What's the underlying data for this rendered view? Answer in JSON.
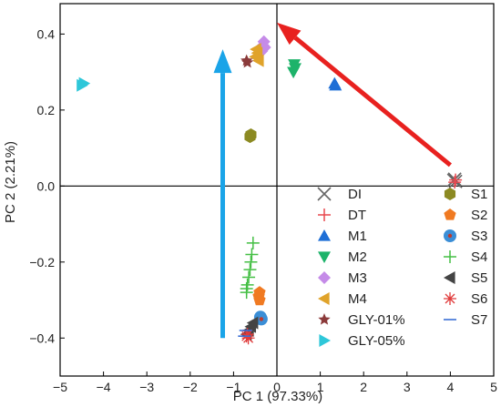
{
  "chart_data": {
    "type": "scatter",
    "title": "",
    "xlabel": "PC 1 (97.33%)",
    "ylabel": "PC 2 (2.21%)",
    "xlim": [
      -5,
      5
    ],
    "ylim": [
      -0.5,
      0.48
    ],
    "xticks": [
      -5,
      -4,
      -3,
      -2,
      -1,
      0,
      1,
      2,
      3,
      4,
      5
    ],
    "xtick_labels": [
      "−5",
      "−4",
      "−3",
      "−2",
      "−1",
      "0",
      "1",
      "2",
      "3",
      "4",
      "5"
    ],
    "yticks": [
      -0.4,
      -0.2,
      0.0,
      0.2,
      0.4
    ],
    "ytick_labels": [
      "−0.4",
      "−0.2",
      "0.0",
      "0.2",
      "0.4"
    ],
    "zero_lines": true,
    "grid": false,
    "legend_position": "bottom-right",
    "series": [
      {
        "name": "DI",
        "marker": "x",
        "color": "#666666",
        "points": [
          [
            4.1,
            0.018
          ],
          [
            4.12,
            0.012
          ],
          [
            4.08,
            0.015
          ]
        ]
      },
      {
        "name": "DT",
        "marker": "plus",
        "color": "#e8484f",
        "points": [
          [
            4.1,
            0.01
          ],
          [
            4.12,
            0.016
          ]
        ]
      },
      {
        "name": "M1",
        "marker": "triangle-up",
        "color": "#1f6fd6",
        "points": [
          [
            1.35,
            0.265
          ],
          [
            1.33,
            0.27
          ]
        ]
      },
      {
        "name": "M2",
        "marker": "triangle-down",
        "color": "#1db36a",
        "points": [
          [
            0.4,
            0.32
          ],
          [
            0.42,
            0.31
          ],
          [
            0.38,
            0.3
          ]
        ]
      },
      {
        "name": "M3",
        "marker": "diamond",
        "color": "#c58be8",
        "points": [
          [
            -0.3,
            0.38
          ],
          [
            -0.32,
            0.37
          ],
          [
            -0.28,
            0.365
          ],
          [
            -0.35,
            0.355
          ]
        ]
      },
      {
        "name": "M4",
        "marker": "triangle-left",
        "color": "#e0a32a",
        "points": [
          [
            -0.45,
            0.35
          ],
          [
            -0.5,
            0.34
          ],
          [
            -0.42,
            0.33
          ],
          [
            -0.48,
            0.36
          ]
        ]
      },
      {
        "name": "GLY-01%",
        "marker": "star",
        "color": "#8b3a3a",
        "points": [
          [
            -0.7,
            0.33
          ],
          [
            -0.68,
            0.325
          ]
        ]
      },
      {
        "name": "GLY-05%",
        "marker": "triangle-right",
        "color": "#2ec7d9",
        "points": [
          [
            -4.45,
            0.27
          ],
          [
            -4.5,
            0.265
          ]
        ]
      },
      {
        "name": "S1",
        "marker": "hexagon",
        "color": "#8c8a22",
        "points": [
          [
            -0.6,
            0.135
          ],
          [
            -0.62,
            0.13
          ]
        ]
      },
      {
        "name": "S2",
        "marker": "pentagon",
        "color": "#f07a22",
        "points": [
          [
            -0.4,
            -0.28
          ],
          [
            -0.42,
            -0.29
          ],
          [
            -0.4,
            -0.3
          ]
        ]
      },
      {
        "name": "S3",
        "marker": "bullseye",
        "color": "#3b8ed6",
        "points": [
          [
            -0.38,
            -0.345
          ],
          [
            -0.36,
            -0.35
          ]
        ]
      },
      {
        "name": "S4",
        "marker": "plus",
        "color": "#44bf44",
        "points": [
          [
            -0.55,
            -0.15
          ],
          [
            -0.58,
            -0.18
          ],
          [
            -0.6,
            -0.2
          ],
          [
            -0.62,
            -0.22
          ],
          [
            -0.65,
            -0.24
          ],
          [
            -0.68,
            -0.26
          ],
          [
            -0.7,
            -0.27
          ],
          [
            -0.7,
            -0.28
          ]
        ]
      },
      {
        "name": "S5",
        "marker": "triangle-left",
        "color": "#444444",
        "points": [
          [
            -0.55,
            -0.36
          ],
          [
            -0.6,
            -0.37
          ],
          [
            -0.65,
            -0.38
          ],
          [
            -0.7,
            -0.39
          ]
        ]
      },
      {
        "name": "S6",
        "marker": "asterisk",
        "color": "#e03a3a",
        "points": [
          [
            -0.68,
            -0.39
          ],
          [
            -0.66,
            -0.4
          ],
          [
            -0.7,
            -0.395
          ]
        ]
      },
      {
        "name": "S7",
        "marker": "dash",
        "color": "#3a6fd6",
        "points": [
          [
            -0.75,
            -0.395
          ],
          [
            -0.72,
            -0.38
          ]
        ]
      }
    ],
    "annotations": [
      {
        "type": "arrow",
        "color": "#e8211f",
        "from": [
          4.0,
          0.055
        ],
        "to": [
          0.0,
          0.43
        ]
      },
      {
        "type": "arrow",
        "color": "#1aa4e8",
        "from": [
          -1.25,
          -0.4
        ],
        "to": [
          -1.25,
          0.36
        ]
      }
    ]
  }
}
